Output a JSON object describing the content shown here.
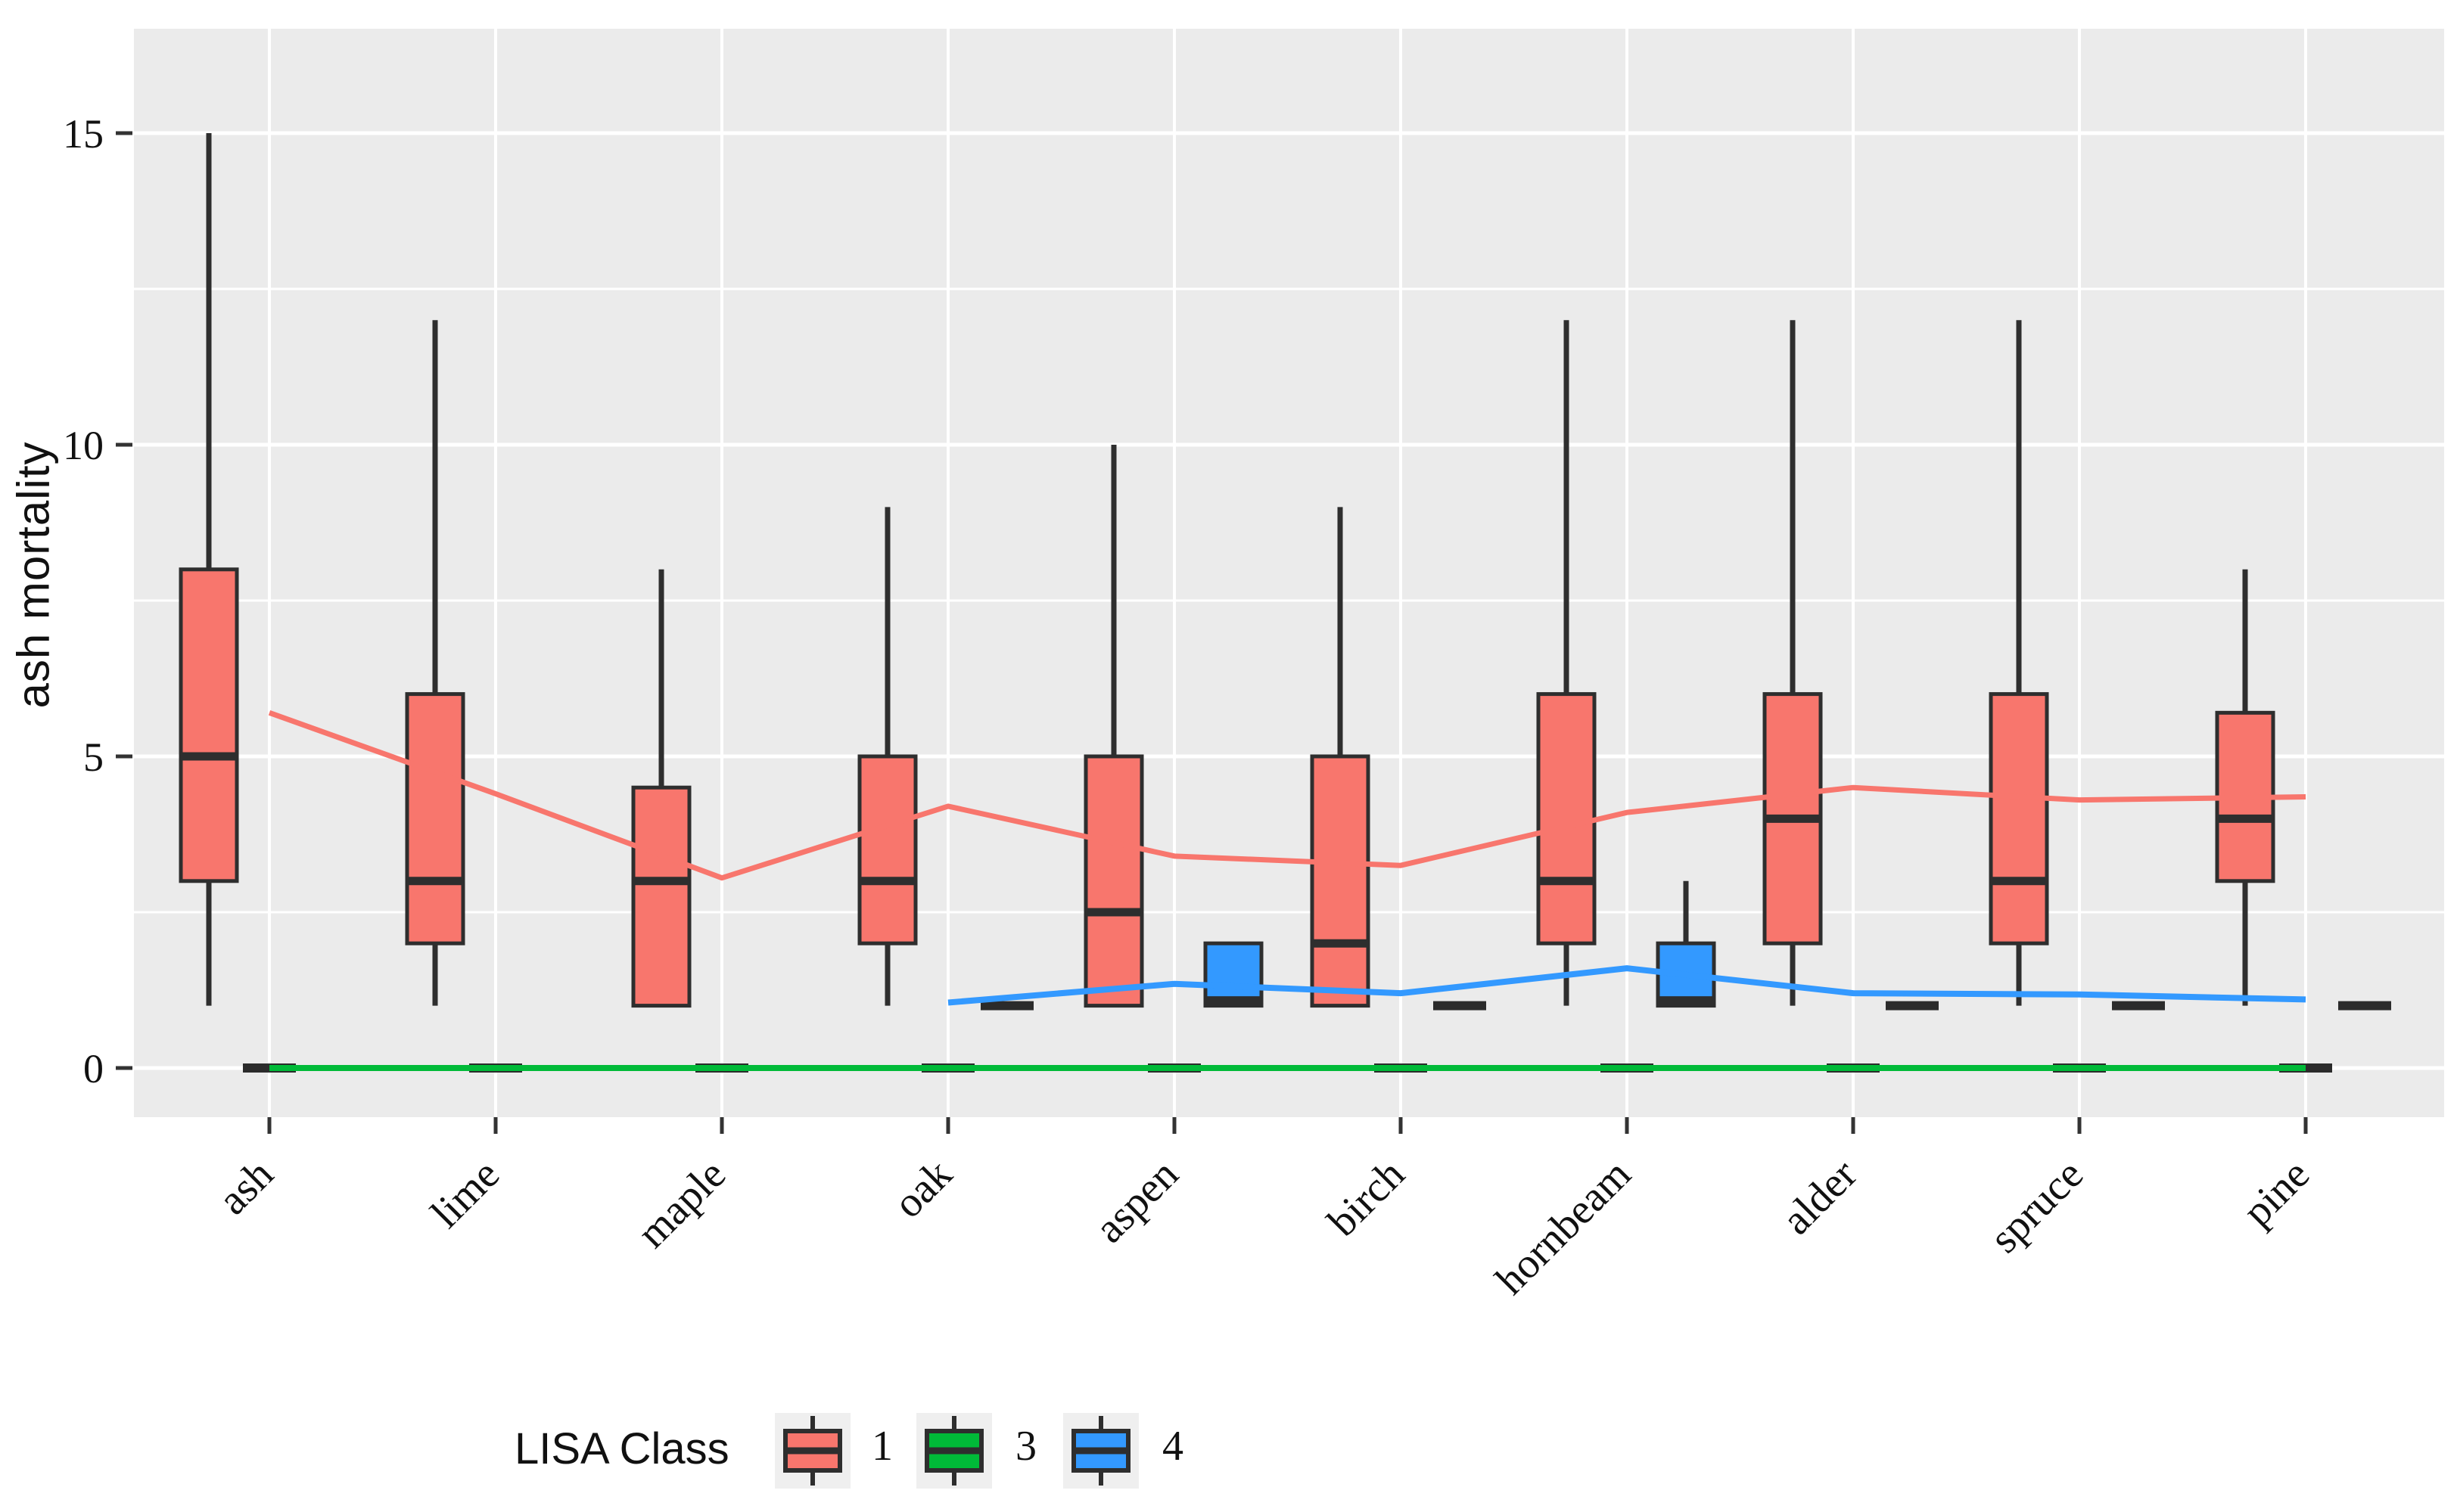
{
  "y_axis": {
    "title": "ash mortality",
    "tick_labels": [
      "0",
      "5",
      "10",
      "15"
    ]
  },
  "x_axis": {
    "tick_labels": [
      "ash",
      "lime",
      "maple",
      "oak",
      "aspen",
      "birch",
      "hornbeam",
      "alder",
      "spruce",
      "pine"
    ]
  },
  "legend": {
    "title": "LISA Class",
    "entries": [
      {
        "label": "1",
        "color": "#F8766D"
      },
      {
        "label": "3",
        "color": "#00BA38"
      },
      {
        "label": "4",
        "color": "#3399FF"
      }
    ]
  },
  "colors": {
    "class1": "#F8766D",
    "class3": "#00BA38",
    "class4": "#3399FF",
    "panel_bg": "#EBEBEB",
    "grid": "#FFFFFF",
    "box_border": "#2E2E2E",
    "flat_dash": "#2B2B2B",
    "legend_key_bg": "#EFEFEF",
    "text": "#111111"
  },
  "chart_data": {
    "type": "boxplot",
    "title": "",
    "xlabel": "",
    "ylabel": "ash mortality",
    "categories": [
      "ash",
      "lime",
      "maple",
      "oak",
      "aspen",
      "birch",
      "hornbeam",
      "alder",
      "spruce",
      "pine"
    ],
    "ylim": [
      -0.8,
      16.9
    ],
    "yticks": [
      0,
      5,
      10,
      15
    ],
    "yticks_minor": [
      2.5,
      7.5,
      12.5
    ],
    "grid": true,
    "legend_position": "bottom",
    "legend_title": "LISA Class",
    "box_order_note": "boxes are [min, q1, median, q3, max]; null = class absent for that species; min==max renders as flat dash",
    "series": [
      {
        "name": "1",
        "color": "#F8766D",
        "dodge": "left",
        "boxes": [
          [
            1,
            3,
            5,
            8,
            15
          ],
          [
            1,
            2,
            3,
            6,
            12
          ],
          [
            1,
            1,
            3,
            4.5,
            8
          ],
          [
            1,
            2,
            3,
            5,
            9
          ],
          [
            1,
            1,
            2.5,
            5,
            10
          ],
          [
            1,
            1,
            2,
            5,
            9
          ],
          [
            1,
            2,
            3,
            6,
            12
          ],
          [
            1,
            2,
            4,
            6,
            12
          ],
          [
            1,
            2,
            3,
            6,
            12
          ],
          [
            1,
            3,
            4,
            5.7,
            8
          ]
        ],
        "mean_line": [
          5.7,
          4.4,
          3.05,
          4.2,
          3.4,
          3.25,
          4.1,
          4.5,
          4.3,
          4.35
        ]
      },
      {
        "name": "3",
        "color": "#00BA38",
        "dodge": "center",
        "boxes": [
          [
            0,
            0,
            0,
            0,
            0
          ],
          [
            0,
            0,
            0,
            0,
            0
          ],
          [
            0,
            0,
            0,
            0,
            0
          ],
          [
            0,
            0,
            0,
            0,
            0
          ],
          [
            0,
            0,
            0,
            0,
            0
          ],
          [
            0,
            0,
            0,
            0,
            0
          ],
          [
            0,
            0,
            0,
            0,
            0
          ],
          [
            0,
            0,
            0,
            0,
            0
          ],
          [
            0,
            0,
            0,
            0,
            0
          ],
          [
            0,
            0,
            0,
            0,
            0
          ]
        ],
        "mean_line": [
          0,
          0,
          0,
          0,
          0,
          0,
          0,
          0,
          0,
          0
        ]
      },
      {
        "name": "4",
        "color": "#3399FF",
        "dodge": "right",
        "boxes": [
          null,
          null,
          null,
          [
            1,
            1,
            1,
            1,
            1
          ],
          [
            1,
            1,
            1,
            2,
            2
          ],
          [
            1,
            1,
            1,
            1,
            1
          ],
          [
            1,
            1,
            1,
            2,
            3
          ],
          [
            1,
            1,
            1,
            1,
            1
          ],
          [
            1,
            1,
            1,
            1,
            1
          ],
          [
            1,
            1,
            1,
            1,
            1
          ]
        ],
        "mean_line": [
          null,
          null,
          null,
          1.05,
          1.35,
          1.2,
          1.6,
          1.2,
          1.18,
          1.1
        ]
      }
    ]
  }
}
